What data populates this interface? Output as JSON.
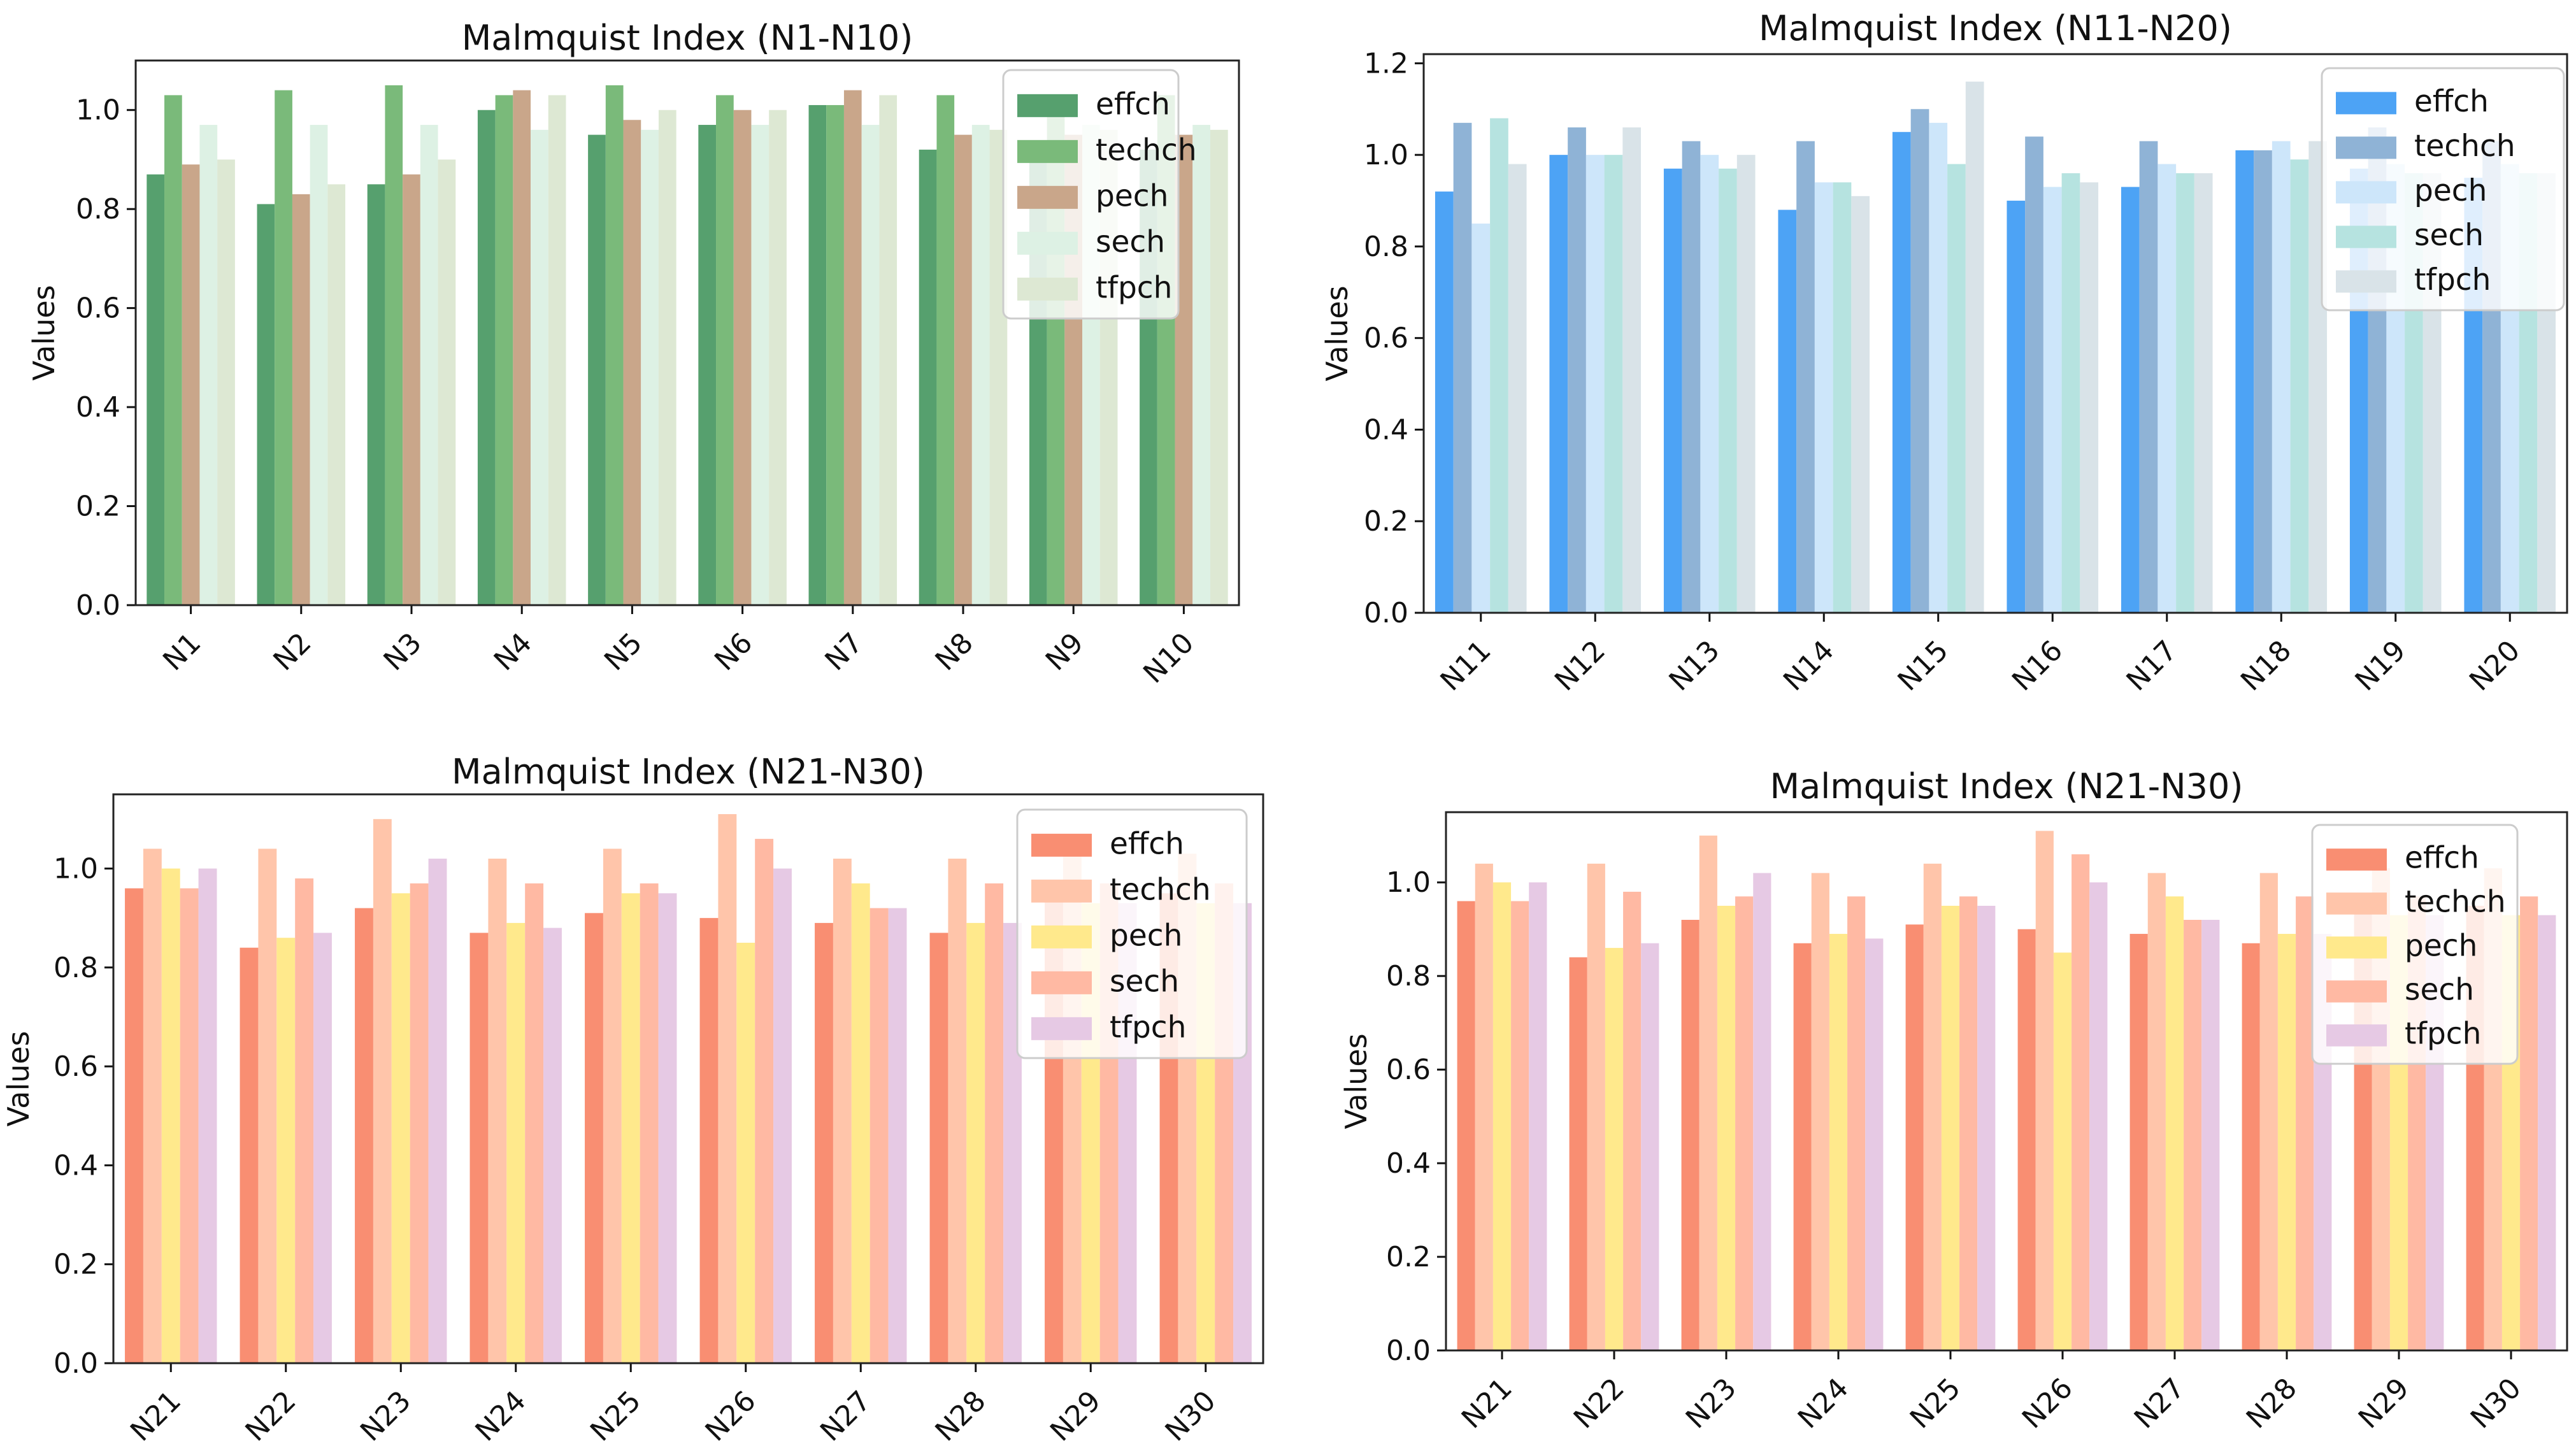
{
  "chart_data": [
    {
      "type": "bar",
      "title": "Malmquist Index (N1-N10)",
      "xlabel": "",
      "ylabel": "Values",
      "ylim": [
        0,
        1.1
      ],
      "yticks": [
        "0.0",
        "0.2",
        "0.4",
        "0.6",
        "0.8",
        "1.0"
      ],
      "legend_position": "top-right",
      "categories": [
        "N1",
        "N2",
        "N3",
        "N4",
        "N5",
        "N6",
        "N7",
        "N8",
        "N9",
        "N10"
      ],
      "series": [
        {
          "name": "effch",
          "color": "#56a06e",
          "values": [
            0.87,
            0.81,
            0.85,
            1.0,
            0.95,
            0.97,
            1.01,
            0.92,
            0.92,
            0.92
          ]
        },
        {
          "name": "techch",
          "color": "#7aba7a",
          "values": [
            1.03,
            1.04,
            1.05,
            1.03,
            1.05,
            1.03,
            1.01,
            1.03,
            1.03,
            1.03
          ]
        },
        {
          "name": "pech",
          "color": "#c9a68a",
          "values": [
            0.89,
            0.83,
            0.87,
            1.04,
            0.98,
            1.0,
            1.04,
            0.95,
            0.95,
            0.95
          ]
        },
        {
          "name": "sech",
          "color": "#ddf1e4",
          "values": [
            0.97,
            0.97,
            0.97,
            0.96,
            0.96,
            0.97,
            0.97,
            0.97,
            0.97,
            0.97
          ]
        },
        {
          "name": "tfpch",
          "color": "#dde8d3",
          "values": [
            0.9,
            0.85,
            0.9,
            1.03,
            1.0,
            1.0,
            1.03,
            0.96,
            0.96,
            0.96
          ]
        }
      ]
    },
    {
      "type": "bar",
      "title": "Malmquist Index (N11-N20)",
      "xlabel": "",
      "ylabel": "Values",
      "ylim": [
        0,
        1.22
      ],
      "yticks": [
        "0.0",
        "0.2",
        "0.4",
        "0.6",
        "0.8",
        "1.0",
        "1.2"
      ],
      "legend_position": "top-right",
      "categories": [
        "N11",
        "N12",
        "N13",
        "N14",
        "N15",
        "N16",
        "N17",
        "N18",
        "N19",
        "N20"
      ],
      "series": [
        {
          "name": "effch",
          "color": "#4da3f5",
          "values": [
            0.92,
            1.0,
            0.97,
            0.88,
            1.05,
            0.9,
            0.93,
            1.01,
            0.97,
            0.95
          ]
        },
        {
          "name": "techch",
          "color": "#8fb3d6",
          "values": [
            1.07,
            1.06,
            1.03,
            1.03,
            1.1,
            1.04,
            1.03,
            1.01,
            1.06,
            1.03
          ]
        },
        {
          "name": "pech",
          "color": "#cde6fa",
          "values": [
            0.85,
            1.0,
            1.0,
            0.94,
            1.07,
            0.93,
            0.98,
            1.03,
            0.98,
            0.98
          ]
        },
        {
          "name": "sech",
          "color": "#b6e3e0",
          "values": [
            1.08,
            1.0,
            0.97,
            0.94,
            0.98,
            0.96,
            0.96,
            0.99,
            0.96,
            0.96
          ]
        },
        {
          "name": "tfpch",
          "color": "#d9e3e8",
          "values": [
            0.98,
            1.06,
            1.0,
            0.91,
            1.16,
            0.94,
            0.96,
            1.03,
            0.96,
            0.96
          ]
        }
      ]
    },
    {
      "type": "bar",
      "title": "Malmquist Index (N21-N30)",
      "xlabel": "",
      "ylabel": "Values",
      "ylim": [
        0,
        1.15
      ],
      "yticks": [
        "0.0",
        "0.2",
        "0.4",
        "0.6",
        "0.8",
        "1.0"
      ],
      "legend_position": "top-right",
      "categories": [
        "N21",
        "N22",
        "N23",
        "N24",
        "N25",
        "N26",
        "N27",
        "N28",
        "N29",
        "N30"
      ],
      "series": [
        {
          "name": "effch",
          "color": "#f98e72",
          "values": [
            0.96,
            0.84,
            0.92,
            0.87,
            0.91,
            0.9,
            0.89,
            0.87,
            0.95,
            0.95
          ]
        },
        {
          "name": "techch",
          "color": "#ffc5aa",
          "values": [
            1.04,
            1.04,
            1.1,
            1.02,
            1.04,
            1.11,
            1.02,
            1.02,
            1.03,
            1.03
          ]
        },
        {
          "name": "pech",
          "color": "#ffe98c",
          "values": [
            1.0,
            0.86,
            0.95,
            0.89,
            0.95,
            0.85,
            0.97,
            0.89,
            0.93,
            0.93
          ]
        },
        {
          "name": "sech",
          "color": "#ffb9a3",
          "values": [
            0.96,
            0.98,
            0.97,
            0.97,
            0.97,
            1.06,
            0.92,
            0.97,
            0.97,
            0.97
          ]
        },
        {
          "name": "tfpch",
          "color": "#e6c9e4",
          "values": [
            1.0,
            0.87,
            1.02,
            0.88,
            0.95,
            1.0,
            0.92,
            0.89,
            0.93,
            0.93
          ]
        }
      ]
    },
    {
      "type": "bar",
      "title": "Malmquist Index (N21-N30)",
      "xlabel": "",
      "ylabel": "Values",
      "ylim": [
        0,
        1.15
      ],
      "yticks": [
        "0.0",
        "0.2",
        "0.4",
        "0.6",
        "0.8",
        "1.0"
      ],
      "legend_position": "top-right",
      "categories": [
        "N21",
        "N22",
        "N23",
        "N24",
        "N25",
        "N26",
        "N27",
        "N28",
        "N29",
        "N30"
      ],
      "series": [
        {
          "name": "effch",
          "color": "#f98e72",
          "values": [
            0.96,
            0.84,
            0.92,
            0.87,
            0.91,
            0.9,
            0.89,
            0.87,
            0.95,
            0.95
          ]
        },
        {
          "name": "techch",
          "color": "#ffc5aa",
          "values": [
            1.04,
            1.04,
            1.1,
            1.02,
            1.04,
            1.11,
            1.02,
            1.02,
            1.03,
            1.03
          ]
        },
        {
          "name": "pech",
          "color": "#ffe98c",
          "values": [
            1.0,
            0.86,
            0.95,
            0.89,
            0.95,
            0.85,
            0.97,
            0.89,
            0.93,
            0.93
          ]
        },
        {
          "name": "sech",
          "color": "#ffb9a3",
          "values": [
            0.96,
            0.98,
            0.97,
            0.97,
            0.97,
            1.06,
            0.92,
            0.97,
            0.97,
            0.97
          ]
        },
        {
          "name": "tfpch",
          "color": "#e6c9e4",
          "values": [
            1.0,
            0.87,
            1.02,
            0.88,
            0.95,
            1.0,
            0.92,
            0.89,
            0.93,
            0.93
          ]
        }
      ]
    }
  ]
}
